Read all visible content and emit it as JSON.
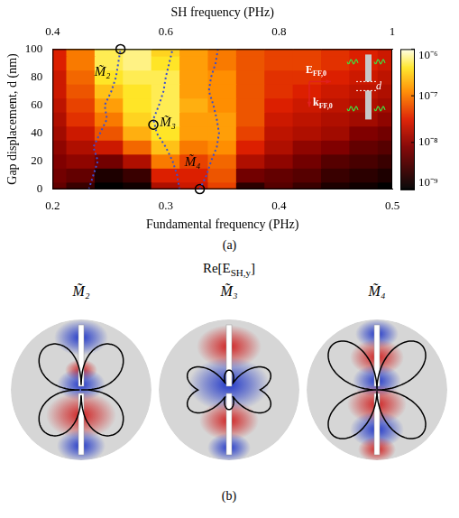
{
  "chart_data": {
    "type": "heatmap",
    "x_label": "Fundamental frequency (PHz)",
    "x2_label": "SH frequency (PHz)",
    "y_label": "Gap displacement, d (nm)",
    "xlim": [
      0.2,
      0.5
    ],
    "xticks": [
      0.2,
      0.3,
      0.4,
      0.5
    ],
    "x2lim": [
      0.4,
      1
    ],
    "x2ticks": [
      0.4,
      0.6,
      0.8,
      1
    ],
    "ylim": [
      0,
      100
    ],
    "yticks": [
      0,
      20,
      40,
      60,
      80,
      100
    ],
    "grid": false,
    "cells": {
      "x": [
        0.2,
        0.225,
        0.25,
        0.275,
        0.3,
        0.325,
        0.35,
        0.375,
        0.4,
        0.425,
        0.45,
        0.475,
        0.5
      ],
      "y": [
        0,
        10,
        20,
        30,
        40,
        50,
        60,
        70,
        80,
        90,
        100
      ],
      "values": [
        [
          5e-09,
          2.5e-09,
          1e-09,
          1.3e-09,
          1.6e-08,
          2.5e-08,
          5e-08,
          2e-09,
          4e-09,
          2.5e-09,
          1.6e-09,
          1.3e-09,
          1e-09
        ],
        [
          6.3e-09,
          5e-09,
          1.6e-09,
          2.5e-09,
          3.2e-08,
          3.2e-08,
          6.3e-08,
          6.3e-09,
          5e-09,
          4e-09,
          2.5e-09,
          2e-09,
          1.6e-09
        ],
        [
          7.9e-09,
          1e-08,
          6.3e-09,
          1.6e-08,
          1e-07,
          5e-08,
          7.9e-08,
          1.6e-08,
          1e-08,
          6.3e-09,
          4e-09,
          3.2e-09,
          2.5e-09
        ],
        [
          1e-08,
          1.6e-08,
          2.5e-08,
          7.9e-08,
          2.5e-07,
          1e-07,
          1.3e-07,
          3.2e-08,
          1.6e-08,
          1e-08,
          7.9e-09,
          5e-09,
          4e-09
        ],
        [
          1.3e-08,
          2.5e-08,
          6.3e-08,
          2e-07,
          4e-07,
          1.6e-07,
          1.6e-07,
          5e-08,
          2e-08,
          1.6e-08,
          1.3e-08,
          7.9e-09,
          6.3e-09
        ],
        [
          1.6e-08,
          4e-08,
          1e-07,
          3.2e-07,
          5e-07,
          1.6e-07,
          1.6e-07,
          6.3e-08,
          2.5e-08,
          2e-08,
          1.6e-08,
          1.3e-08,
          1e-08
        ],
        [
          2e-08,
          5e-08,
          1.6e-07,
          4e-07,
          5e-07,
          2e-07,
          1.3e-07,
          6.3e-08,
          3.2e-08,
          2.5e-08,
          2e-08,
          1.6e-08,
          1.3e-08
        ],
        [
          2.5e-08,
          6.3e-08,
          2.5e-07,
          4e-07,
          5e-07,
          1.6e-07,
          1.3e-07,
          6.3e-08,
          4e-08,
          3.2e-08,
          2.5e-08,
          2e-08,
          1.6e-08
        ],
        [
          2.5e-08,
          7.9e-08,
          4e-07,
          5e-07,
          5e-07,
          1.6e-07,
          1.3e-07,
          6.3e-08,
          4e-08,
          4e-08,
          3.2e-08,
          2.5e-08,
          2e-08
        ],
        [
          3.2e-08,
          1e-07,
          5e-07,
          6.3e-07,
          4e-07,
          1.6e-07,
          1e-07,
          6.3e-08,
          5e-08,
          5e-08,
          4e-08,
          3.2e-08,
          2.5e-08
        ],
        [
          3.2e-08,
          1e-07,
          5e-07,
          6.3e-07,
          3.2e-07,
          1.6e-07,
          1e-07,
          6.3e-08,
          5e-08,
          5e-08,
          4e-08,
          3.2e-08,
          2.5e-08
        ]
      ]
    },
    "colorbar": {
      "lim": [
        1e-09,
        1e-06
      ],
      "log": true,
      "ticks": [
        {
          "value": 1e-06,
          "label": "10⁻⁶"
        },
        {
          "value": 1e-07,
          "label": "10⁻⁷"
        },
        {
          "value": 1e-08,
          "label": "10⁻⁸"
        },
        {
          "value": 1e-09,
          "label": "10⁻⁹"
        }
      ]
    },
    "series": [
      {
        "name": "M̃₂",
        "color": "#3a4fd0",
        "line_style": "dotted",
        "x": [
          0.232,
          0.236,
          0.24,
          0.236,
          0.242,
          0.248,
          0.246,
          0.252,
          0.256,
          0.258,
          0.26
        ],
        "y": [
          0,
          10,
          20,
          30,
          40,
          50,
          60,
          70,
          80,
          90,
          100
        ]
      },
      {
        "name": "M̃₃",
        "color": "#3a4fd0",
        "line_style": "dotted",
        "x": [
          0.312,
          0.31,
          0.306,
          0.3,
          0.292,
          0.289,
          0.294,
          0.298,
          0.3,
          0.303,
          0.306
        ],
        "y": [
          0,
          10,
          20,
          30,
          40,
          50,
          60,
          70,
          80,
          90,
          100
        ]
      },
      {
        "name": "M̃₄",
        "color": "#3a4fd0",
        "line_style": "dotted",
        "x": [
          0.33,
          0.336,
          0.34,
          0.345,
          0.347,
          0.345,
          0.342,
          0.338,
          0.34,
          0.344,
          0.346
        ],
        "y": [
          0,
          10,
          20,
          30,
          40,
          50,
          60,
          70,
          80,
          90,
          100
        ]
      }
    ],
    "markers": {
      "x": [
        0.26,
        0.289,
        0.33
      ],
      "y": [
        100,
        46,
        0
      ],
      "marker": "circle",
      "color": "#000000"
    },
    "annotations": [
      {
        "main": "E",
        "sub": "FF,0"
      },
      {
        "main": "k",
        "sub": "FF,0"
      },
      {
        "main": "d"
      }
    ],
    "caption": "(a)"
  },
  "panel_b": {
    "title": {
      "main": "Re[E",
      "sub": "SH,y",
      "tail": "]"
    },
    "modes": [
      "M̃₂",
      "M̃₃",
      "M̃₄"
    ],
    "caption": "(b)"
  }
}
